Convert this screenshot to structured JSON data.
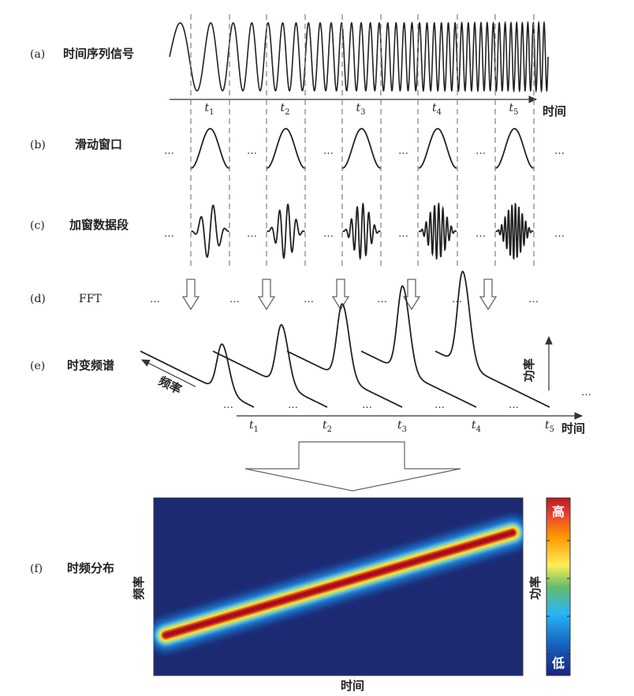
{
  "rows": {
    "a": {
      "tag": "(a)",
      "label": "时间序列信号"
    },
    "b": {
      "tag": "(b)",
      "label": "滑动窗口"
    },
    "c": {
      "tag": "(c)",
      "label": "加窗数据段"
    },
    "d": {
      "tag": "(d)",
      "label": "FFT"
    },
    "e": {
      "tag": "(e)",
      "label": "时变频谱"
    },
    "f": {
      "tag": "(f)",
      "label": "时频分布"
    }
  },
  "ellipsis": "…",
  "time_marks": [
    {
      "t": "t",
      "sub": "1"
    },
    {
      "t": "t",
      "sub": "2"
    },
    {
      "t": "t",
      "sub": "3"
    },
    {
      "t": "t",
      "sub": "4"
    },
    {
      "t": "t",
      "sub": "5"
    }
  ],
  "axes": {
    "time": "时间",
    "frequency": "频率",
    "power": "功率"
  },
  "colorbar": {
    "high": "高",
    "low": "低",
    "label": "功率"
  },
  "colors": {
    "map_background": "#1d2a73",
    "ridge_core": "#a50f15",
    "line": "#333333",
    "dashed": "#888888"
  }
}
